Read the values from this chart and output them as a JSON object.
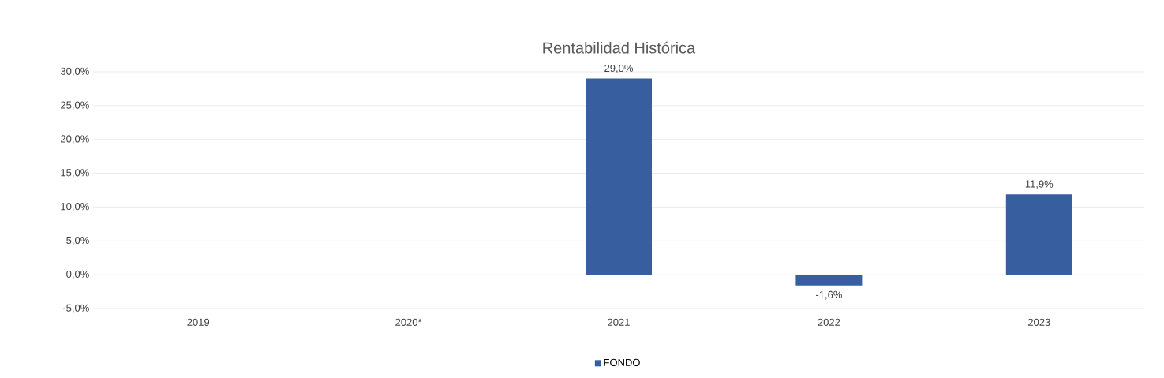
{
  "chart_data": {
    "type": "bar",
    "title": "Rentabilidad Histórica",
    "categories": [
      "2019",
      "2020*",
      "2021",
      "2022",
      "2023"
    ],
    "series": [
      {
        "name": "FONDO",
        "color": "#375f9f",
        "values": [
          null,
          null,
          29.0,
          -1.6,
          11.9
        ],
        "value_labels": [
          null,
          null,
          "29,0%",
          "-1,6%",
          "11,9%"
        ]
      }
    ],
    "ylim": [
      -5,
      30
    ],
    "yticks": [
      {
        "value": -5,
        "label": "-5,0%"
      },
      {
        "value": 0,
        "label": "0,0%"
      },
      {
        "value": 5,
        "label": "5,0%"
      },
      {
        "value": 10,
        "label": "10,0%"
      },
      {
        "value": 15,
        "label": "15,0%"
      },
      {
        "value": 20,
        "label": "20,0%"
      },
      {
        "value": 25,
        "label": "25,0%"
      },
      {
        "value": 30,
        "label": "30,0%"
      }
    ],
    "grid": "y",
    "legend": "bottom"
  }
}
